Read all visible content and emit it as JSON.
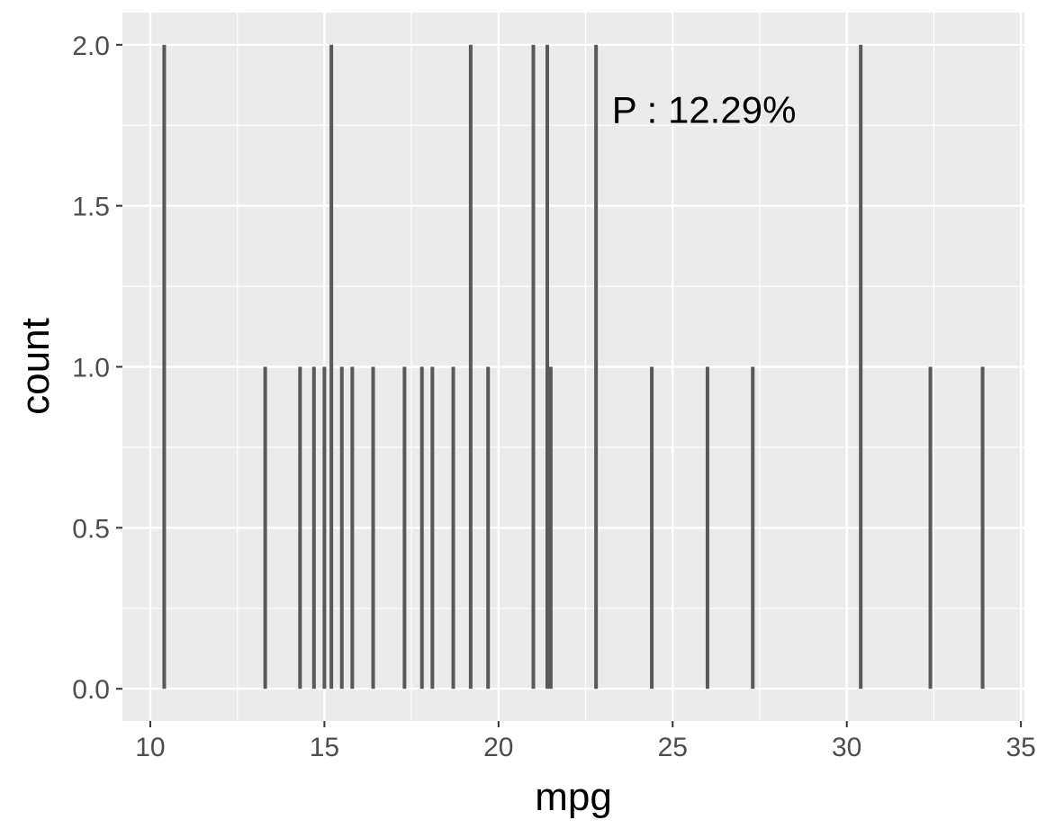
{
  "chart_data": {
    "type": "bar",
    "xlabel": "mpg",
    "ylabel": "count",
    "xlim": [
      9.2,
      35.1
    ],
    "ylim": [
      -0.1,
      2.1
    ],
    "x_ticks": [
      10,
      15,
      20,
      25,
      30,
      35
    ],
    "x_tick_labels": [
      "10",
      "15",
      "20",
      "25",
      "30",
      "35"
    ],
    "y_ticks": [
      0,
      0.5,
      1,
      1.5,
      2
    ],
    "y_tick_labels": [
      "0.0",
      "0.5",
      "1.0",
      "1.5",
      "2.0"
    ],
    "grid": true,
    "series": [
      {
        "x": [
          10.4,
          13.3,
          14.3,
          14.7,
          15.0,
          15.2,
          15.5,
          15.8,
          16.4,
          17.3,
          17.8,
          18.1,
          18.7,
          19.2,
          19.7,
          21.0,
          21.4,
          21.5,
          22.8,
          24.4,
          26.0,
          27.3,
          30.4,
          32.4,
          33.9
        ],
        "values": [
          2,
          1,
          1,
          1,
          1,
          2,
          1,
          1,
          1,
          1,
          1,
          1,
          1,
          2,
          1,
          2,
          2,
          1,
          2,
          1,
          1,
          1,
          2,
          1,
          1
        ]
      }
    ],
    "annotations": [
      {
        "text": "P : 12.29%",
        "x": 25.9,
        "y": 1.8
      }
    ],
    "colors": {
      "panel": "#ebebeb",
      "grid": "#ffffff",
      "bar": "#595959"
    }
  }
}
